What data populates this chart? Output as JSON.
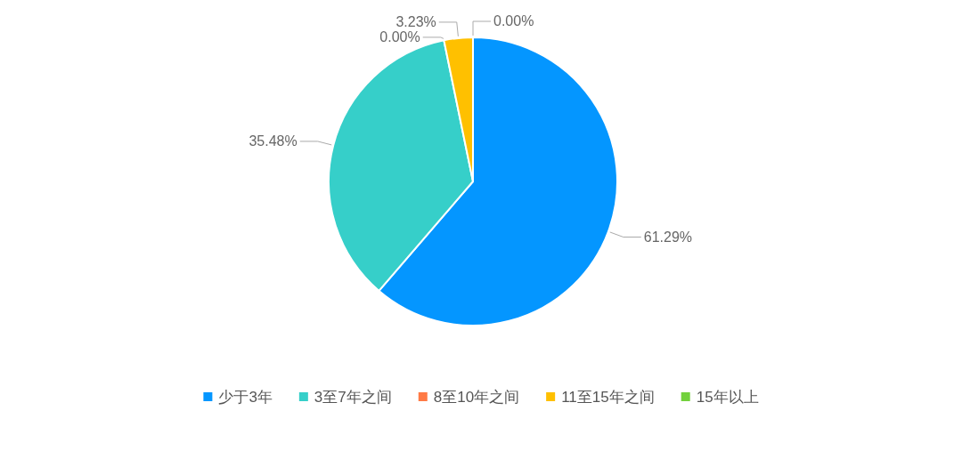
{
  "chart_data": {
    "type": "pie",
    "categories": [
      "少于3年",
      "3至7年之间",
      "8至10年之间",
      "11至15年之间",
      "15年以上"
    ],
    "values": [
      61.29,
      35.48,
      0,
      3.23,
      0
    ],
    "colors": [
      "#0496ff",
      "#36cfc9",
      "#ff7a45",
      "#ffc000",
      "#73d13d"
    ],
    "value_labels": [
      "61.29%",
      "35.48%",
      "0.00%",
      "3.23%",
      "0.00%"
    ],
    "legend": "bottom"
  }
}
